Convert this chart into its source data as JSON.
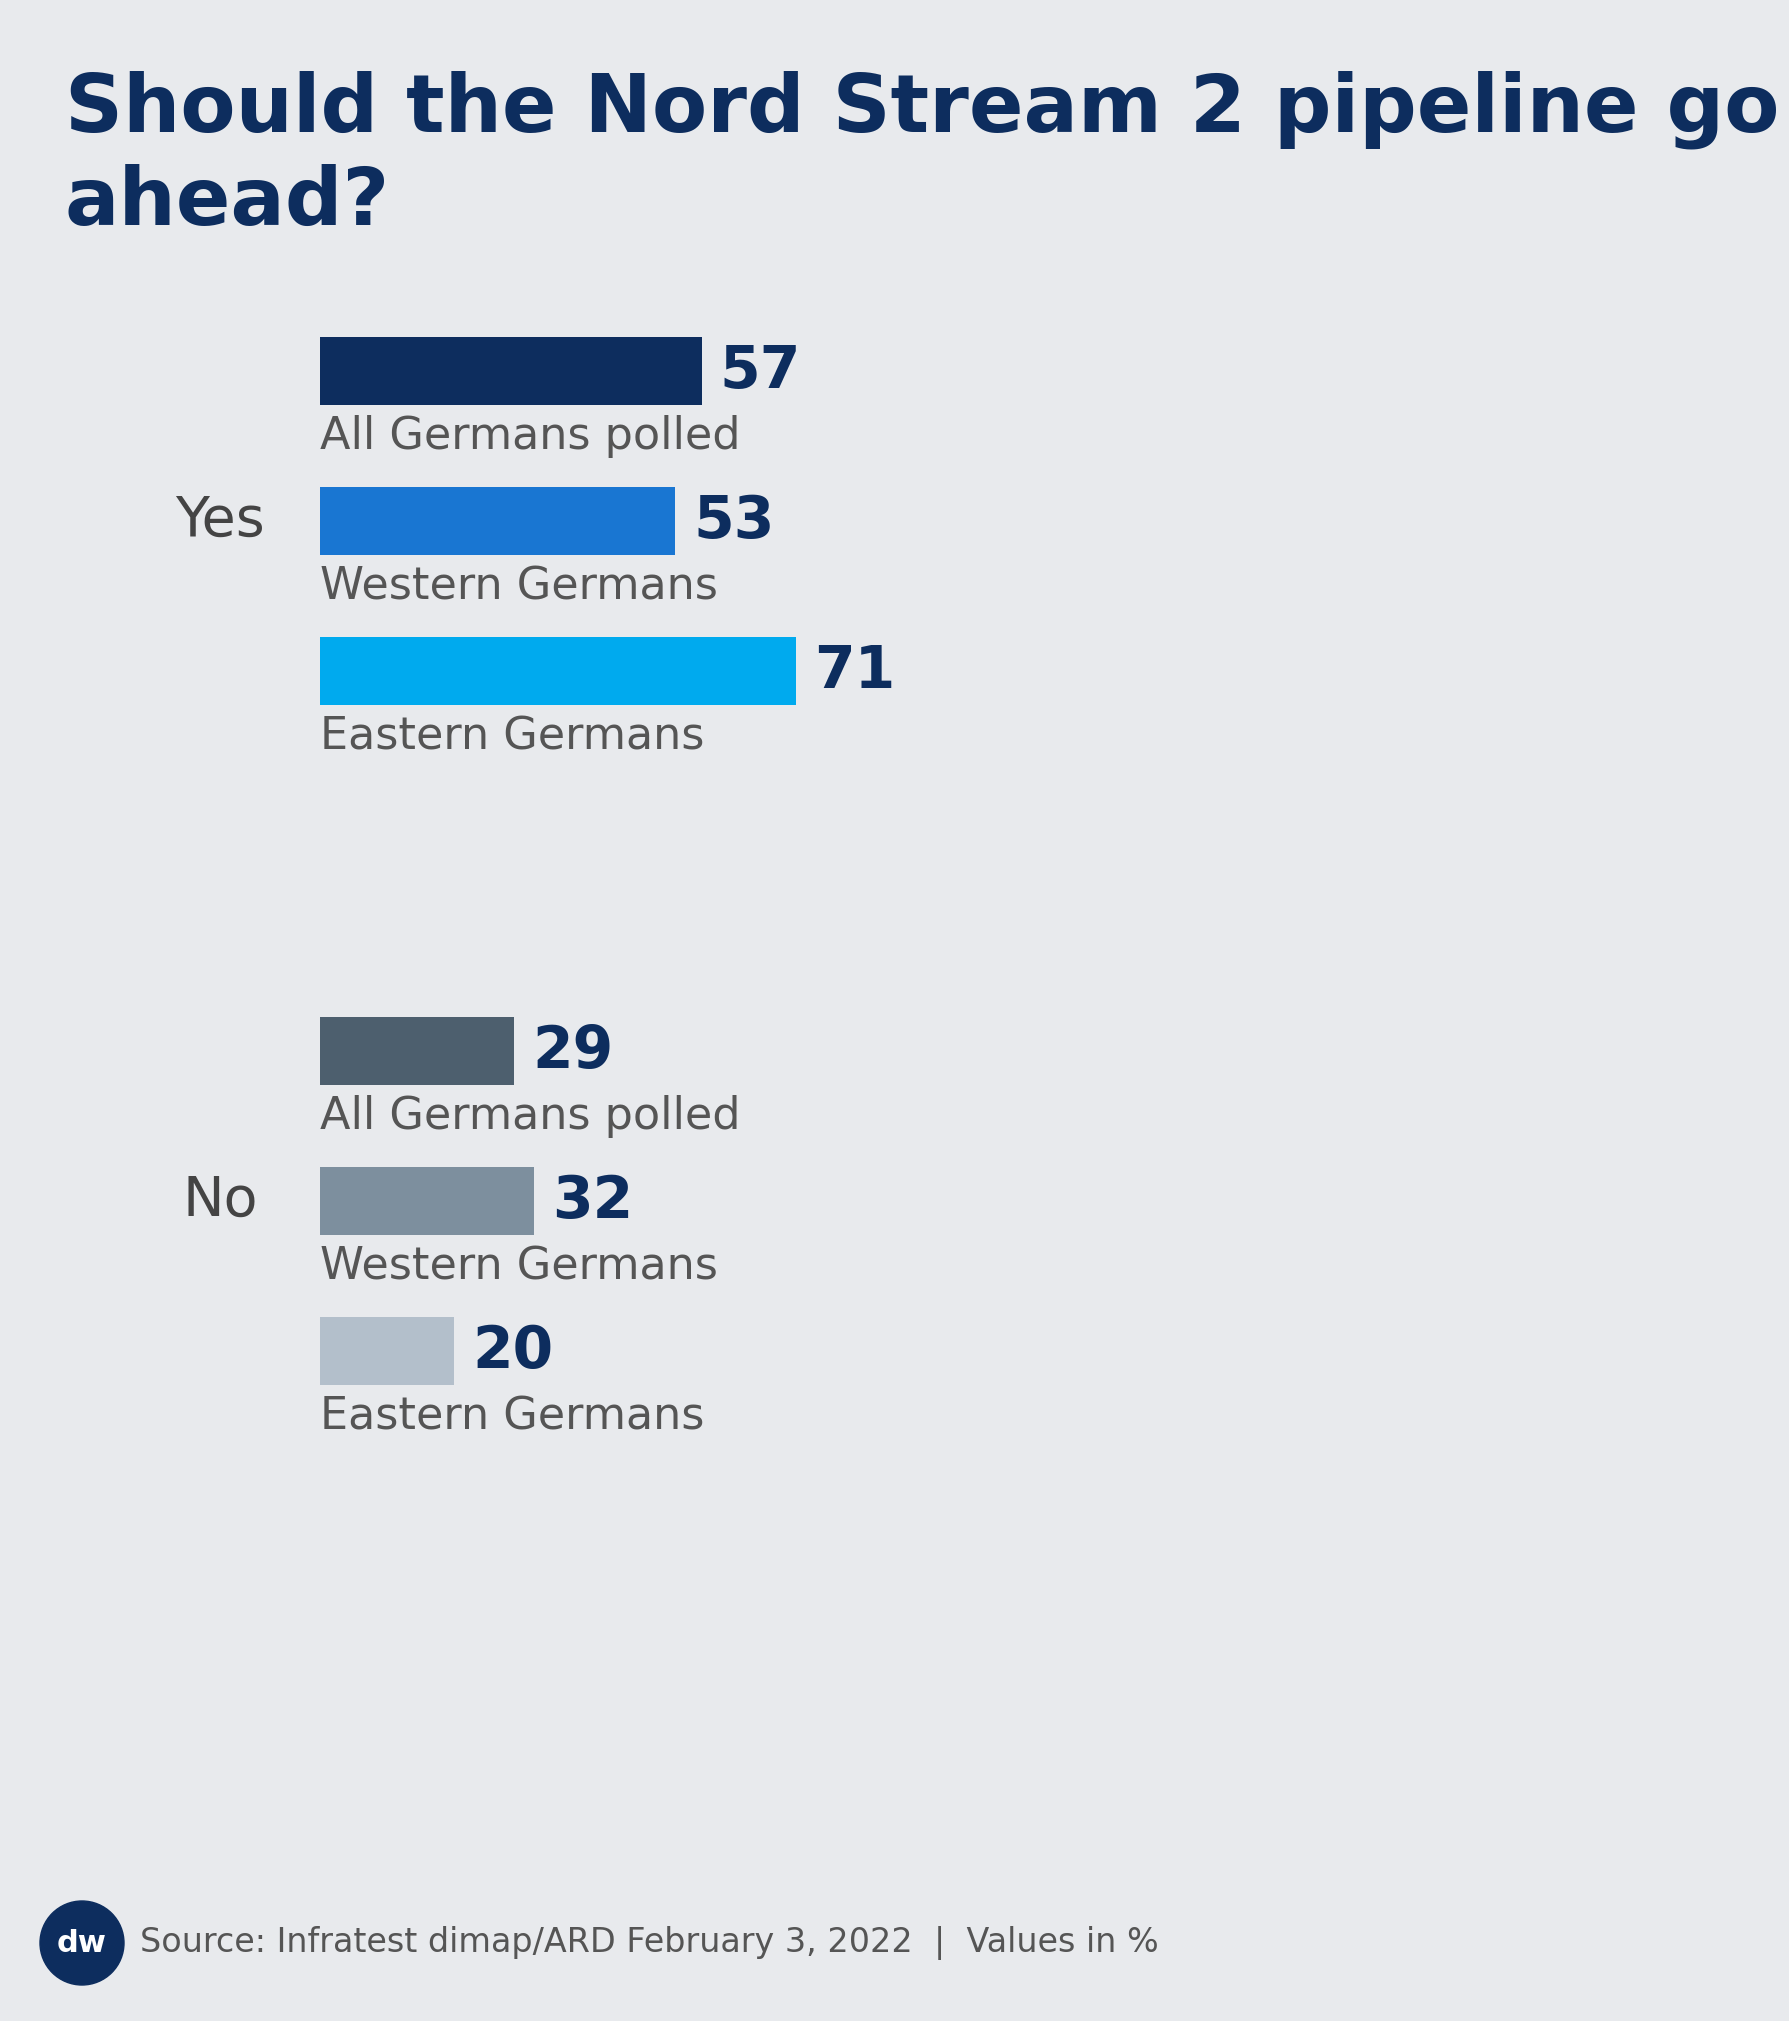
{
  "title": "Should the Nord Stream 2 pipeline go\nahead?",
  "title_color": "#0d2d5e",
  "background_color": "#e8eaed",
  "yes_bars": [
    {
      "label": "All Germans polled",
      "value": 57,
      "color": "#0d2d5e"
    },
    {
      "label": "Western Germans",
      "value": 53,
      "color": "#1976d2"
    },
    {
      "label": "Eastern Germans",
      "value": 71,
      "color": "#00aaee"
    }
  ],
  "no_bars": [
    {
      "label": "All Germans polled",
      "value": 29,
      "color": "#4d5f6e"
    },
    {
      "label": "Western Germans",
      "value": 32,
      "color": "#7d8f9e"
    },
    {
      "label": "Eastern Germans",
      "value": 20,
      "color": "#b3bfcb"
    }
  ],
  "group_labels": [
    "Yes",
    "No"
  ],
  "group_label_color": "#444444",
  "value_label_color": "#0d2d5e",
  "sub_label_color": "#555555",
  "max_value": 100,
  "source_text": "Source: Infratest dimap/ARD February 3, 2022  |  Values in %",
  "source_color": "#555555",
  "title_fontsize": 58,
  "group_label_fontsize": 40,
  "value_fontsize": 42,
  "sub_label_fontsize": 32,
  "source_fontsize": 24
}
